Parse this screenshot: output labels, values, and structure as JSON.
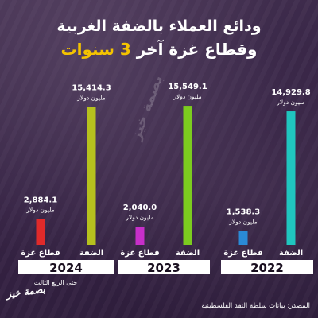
{
  "title_line1": "ودائع العملاء بالضفة الغربية",
  "title_line2_prefix": "وقطاع غزة آخر",
  "title_line2_highlight": "3 سنوات",
  "unit": "مليون دولار",
  "note": "حتى الربع الثالث",
  "source": "المصدر: بيانات سلطة النقد الفلسطينية",
  "logo": "بصمة خيز",
  "watermark": "بصمة خيز",
  "colors": {
    "gaza_2024": "#e02a2a",
    "westbank_2024": "#b6c11e",
    "gaza_2023": "#c72fc9",
    "westbank_2023": "#7ccc1f",
    "gaza_2022": "#2a8ad6",
    "westbank_2022": "#20c6bf",
    "year_bar": "#ffffff",
    "accent": "#f4c300"
  },
  "chart_data": {
    "type": "bar",
    "title": "ودائع العملاء بالضفة الغربية وقطاع غزة آخر 3 سنوات",
    "ylabel": "",
    "ylim": [
      0,
      16000
    ],
    "groups": [
      {
        "year": "2024",
        "bars": [
          {
            "category": "قطاع غزة",
            "value": 2884.1,
            "label": "2,884.1"
          },
          {
            "category": "الضفة",
            "value": 15414.3,
            "label": "15,414.3"
          }
        ]
      },
      {
        "year": "2023",
        "bars": [
          {
            "category": "قطاع غزة",
            "value": 2040.0,
            "label": "2,040.0"
          },
          {
            "category": "الضفة",
            "value": 15549.1,
            "label": "15,549.1"
          }
        ]
      },
      {
        "year": "2022",
        "bars": [
          {
            "category": "قطاع غزة",
            "value": 1538.3,
            "label": "1,538.3"
          },
          {
            "category": "الضفة",
            "value": 14929.8,
            "label": "14,929.8"
          }
        ]
      }
    ]
  }
}
